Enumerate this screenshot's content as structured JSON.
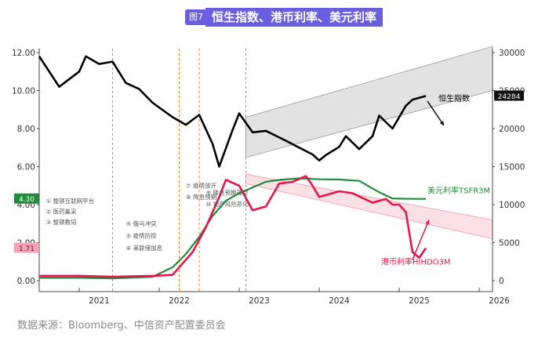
{
  "header": {
    "figure_tag": "图7",
    "title": "恒生指数、港币利率、美元利率"
  },
  "source": "数据来源：Bloomberg、中信资产配置委员会",
  "colors": {
    "hsi": "#000000",
    "us_rate": "#1e8c3a",
    "hk_rate": "#e8144a",
    "event_line": "#f07c2b",
    "title_bg": "#6a5ee0"
  },
  "chart_data": {
    "type": "line",
    "title": "恒生指数、港币利率、美元利率",
    "x_ticks": [
      "2021",
      "2022",
      "2023",
      "2024",
      "2025",
      "2026"
    ],
    "xlim": [
      "2020-07",
      "2026-03"
    ],
    "y_left": {
      "ticks": [
        "0.00",
        "2.00",
        "4.00",
        "6.00",
        "8.00",
        "10.00",
        "12.00"
      ],
      "range": [
        0,
        12
      ]
    },
    "y_right": {
      "ticks": [
        "0",
        "5000",
        "10000",
        "15000",
        "20000",
        "25000",
        "30000"
      ],
      "range": [
        0,
        30000
      ]
    },
    "markers": {
      "hk_rate_last": "1.71",
      "us_rate_last": "4.30",
      "hsi_last": "24284"
    },
    "series": [
      {
        "name": "恒生指数",
        "axis": "right",
        "x": [
          "2020-07",
          "2020-10",
          "2021-01",
          "2021-02",
          "2021-04",
          "2021-06",
          "2021-08",
          "2021-10",
          "2021-12",
          "2022-03",
          "2022-05",
          "2022-07",
          "2022-09",
          "2022-10",
          "2022-12",
          "2023-01",
          "2023-03",
          "2023-05",
          "2023-08",
          "2023-10",
          "2023-12",
          "2024-01",
          "2024-02",
          "2024-04",
          "2024-05",
          "2024-07",
          "2024-09",
          "2024-10",
          "2024-12",
          "2025-02",
          "2025-03",
          "2025-05"
        ],
        "values": [
          29500,
          25500,
          27500,
          29500,
          28500,
          28800,
          26000,
          25200,
          23400,
          21500,
          20500,
          21800,
          18000,
          15000,
          19800,
          22000,
          19500,
          19700,
          18400,
          17500,
          16600,
          15800,
          16500,
          17600,
          19000,
          17300,
          19000,
          21700,
          20000,
          23000,
          23800,
          24284
        ]
      },
      {
        "name": "美元利率TSFR3M",
        "axis": "left",
        "x": [
          "2020-07",
          "2021-01",
          "2021-06",
          "2021-12",
          "2022-03",
          "2022-05",
          "2022-07",
          "2022-09",
          "2022-11",
          "2023-01",
          "2023-03",
          "2023-05",
          "2023-07",
          "2023-10",
          "2024-01",
          "2024-04",
          "2024-07",
          "2024-09",
          "2024-10",
          "2024-12",
          "2025-03",
          "2025-05"
        ],
        "values": [
          0.15,
          0.15,
          0.12,
          0.2,
          0.7,
          1.4,
          2.3,
          3.4,
          4.2,
          4.6,
          4.9,
          5.2,
          5.3,
          5.38,
          5.33,
          5.32,
          5.25,
          4.85,
          4.65,
          4.32,
          4.3,
          4.3
        ]
      },
      {
        "name": "港币利率HIHDO3M",
        "axis": "left",
        "x": [
          "2020-07",
          "2021-01",
          "2021-06",
          "2021-12",
          "2022-03",
          "2022-06",
          "2022-08",
          "2022-10",
          "2022-11",
          "2023-01",
          "2023-03",
          "2023-05",
          "2023-07",
          "2023-09",
          "2023-11",
          "2023-12",
          "2024-01",
          "2024-04",
          "2024-06",
          "2024-09",
          "2024-11",
          "2024-12",
          "2025-01",
          "2025-02",
          "2025-03",
          "2025-04",
          "2025-05"
        ],
        "values": [
          0.25,
          0.25,
          0.2,
          0.25,
          0.3,
          1.5,
          2.8,
          4.4,
          5.3,
          5.0,
          3.7,
          3.9,
          5.1,
          5.2,
          5.5,
          5.0,
          4.4,
          4.7,
          4.6,
          4.1,
          4.3,
          4.0,
          4.0,
          3.6,
          1.5,
          1.2,
          1.71
        ]
      }
    ],
    "series_labels": [
      {
        "series": "恒生指数",
        "text": "恒生指数"
      },
      {
        "series": "美元利率TSFR3M",
        "text": "美元利率TSFR3M"
      },
      {
        "series": "港币利率HIHDO3M",
        "text": "港币利率HIHDO3M"
      }
    ],
    "event_dates": [
      "2021-06",
      "2022-04",
      "2022-07",
      "2023-02"
    ],
    "annotations": [
      {
        "text": "① 整顿互联网平台",
        "at": "2020-08",
        "y": 10200
      },
      {
        "text": "② 医药集采",
        "at": "2020-08",
        "y": 8800
      },
      {
        "text": "③ 整顿教培",
        "at": "2020-08",
        "y": 7400
      },
      {
        "text": "④ 俄乌冲突",
        "at": "2021-08",
        "y": 7200
      },
      {
        "text": "⑤ 疫情防控",
        "at": "2021-08",
        "y": 5600
      },
      {
        "text": "⑥ 美联储加息",
        "at": "2021-08",
        "y": 4000
      },
      {
        "text": "⑦ 疫情放开",
        "at": "2022-05",
        "y": 12200
      },
      {
        "text": "⑧ 降息预期",
        "at": "2022-05",
        "y": 10700
      },
      {
        "text": "⑨ 降息预期落空",
        "at": "2022-08",
        "y": 11300
      },
      {
        "text": "⑩ 地产风险恶化",
        "at": "2022-08",
        "y": 9800
      }
    ],
    "channels": [
      {
        "name": "hsi_up_channel",
        "axis": "right",
        "from": "2023-02",
        "to": "2026-03",
        "upper": [
          21500,
          30800
        ],
        "lower": [
          16200,
          25000
        ],
        "color": "#cfcfcf"
      },
      {
        "name": "hk_down_channel",
        "axis": "left",
        "from": "2023-02",
        "to": "2026-03",
        "upper": [
          5.6,
          3.2
        ],
        "lower": [
          5.1,
          2.2
        ],
        "color": "#f8c8d2"
      }
    ],
    "grid": false,
    "legend": "inline labels"
  }
}
